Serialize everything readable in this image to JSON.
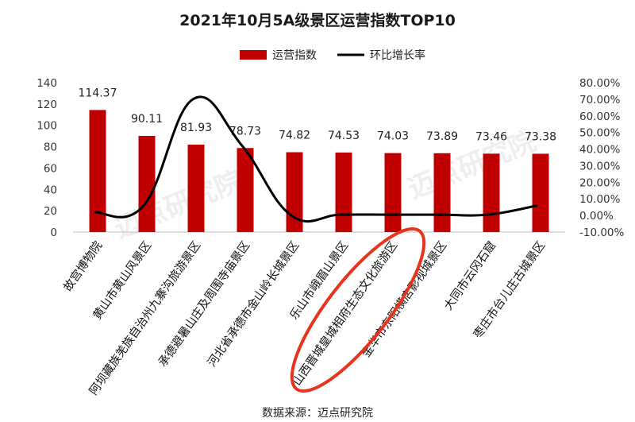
{
  "chart_data": {
    "type": "bar",
    "title": "2021年10月5A级景区运营指数TOP10",
    "source": "数据来源：迈点研究院",
    "watermark": "迈点研究院",
    "legend": {
      "position": "top",
      "bar_label": "运营指数",
      "line_label": "环比增长率"
    },
    "categories": [
      "故宫博物院",
      "黄山市黄山风景区",
      "阿坝藏族羌族自治州九寨沟旅游景区",
      "承德避暑山庄及周围寺庙景区",
      "河北省承德市金山岭长城景区",
      "乐山市峨眉山景区",
      "山西晋城皇城相府生态文化旅游区",
      "金华市东阳横店影视城景区",
      "大同市云冈石窟",
      "枣庄市台儿庄古城景区"
    ],
    "series": [
      {
        "name": "运营指数",
        "type": "bar",
        "axis": "left",
        "color": "#c00000",
        "values": [
          114.37,
          90.11,
          81.93,
          78.73,
          74.82,
          74.53,
          74.03,
          73.89,
          73.46,
          73.38
        ],
        "labels": [
          "114.37",
          "90.11",
          "81.93",
          "78.73",
          "74.82",
          "74.53",
          "74.03",
          "73.89",
          "73.46",
          "73.38"
        ]
      },
      {
        "name": "环比增长率",
        "type": "line",
        "axis": "right",
        "color": "#000000",
        "values": [
          2.0,
          6.0,
          70.0,
          42.0,
          0.0,
          0.5,
          0.5,
          0.5,
          0.5,
          6.0
        ]
      }
    ],
    "y_left": {
      "min": 0,
      "max": 140,
      "ticks": [
        "0",
        "20",
        "40",
        "60",
        "80",
        "100",
        "120",
        "140"
      ]
    },
    "y_right": {
      "min": -10,
      "max": 80,
      "ticks": [
        "-10.00%",
        "0.00%",
        "10.00%",
        "20.00%",
        "30.00%",
        "40.00%",
        "50.00%",
        "60.00%",
        "70.00%",
        "80.00%"
      ]
    },
    "highlight": {
      "category": "山西晋城皇城相府生态文化旅游区",
      "color": "#e8341c"
    }
  }
}
